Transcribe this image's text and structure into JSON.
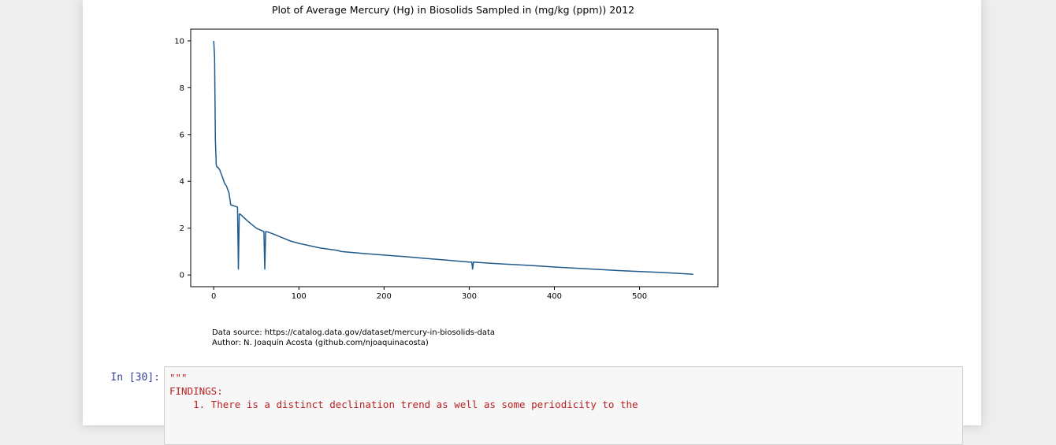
{
  "output": {
    "caption_lines": [
      "Data source: https://catalog.data.gov/dataset/mercury-in-biosolids-data",
      "Author: N. Joaquín Acosta (github.com/njoaquinacosta)"
    ]
  },
  "cell": {
    "prompt": "In [30]:",
    "code_lines": [
      "\"\"\"",
      "FINDINGS:",
      "",
      "    1. There is a distinct declination trend as well as some periodicity to the"
    ]
  },
  "chart_data": {
    "type": "line",
    "title": "Plot of Average Mercury (Hg) in Biosolids Sampled in (mg/kg (ppm)) 2012",
    "xlabel": "",
    "ylabel": "",
    "xlim": [
      -27,
      592
    ],
    "ylim": [
      -0.5,
      10.5
    ],
    "xticks": [
      0,
      100,
      200,
      300,
      400,
      500
    ],
    "yticks": [
      0,
      2,
      4,
      6,
      8,
      10
    ],
    "grid": false,
    "line_color": "#1f5a8c",
    "series": [
      {
        "x": [
          0,
          1,
          2,
          3,
          4,
          5,
          7,
          10,
          13,
          15,
          18,
          20,
          28,
          29,
          30,
          31,
          40,
          50,
          59,
          60,
          61,
          62,
          70,
          80,
          90,
          100,
          125,
          145,
          150,
          175,
          200,
          225,
          250,
          275,
          300,
          303,
          304,
          305,
          325,
          350,
          375,
          400,
          425,
          450,
          475,
          500,
          525,
          550,
          563
        ],
        "y": [
          10.0,
          9.3,
          5.8,
          4.7,
          4.6,
          4.6,
          4.5,
          4.2,
          3.9,
          3.8,
          3.5,
          3.0,
          2.9,
          0.25,
          2.6,
          2.6,
          2.3,
          2.0,
          1.85,
          0.25,
          1.85,
          1.85,
          1.75,
          1.6,
          1.45,
          1.35,
          1.15,
          1.05,
          1.0,
          0.92,
          0.85,
          0.78,
          0.7,
          0.63,
          0.55,
          0.55,
          0.25,
          0.55,
          0.5,
          0.45,
          0.4,
          0.34,
          0.29,
          0.24,
          0.19,
          0.15,
          0.11,
          0.06,
          0.03
        ]
      }
    ]
  }
}
